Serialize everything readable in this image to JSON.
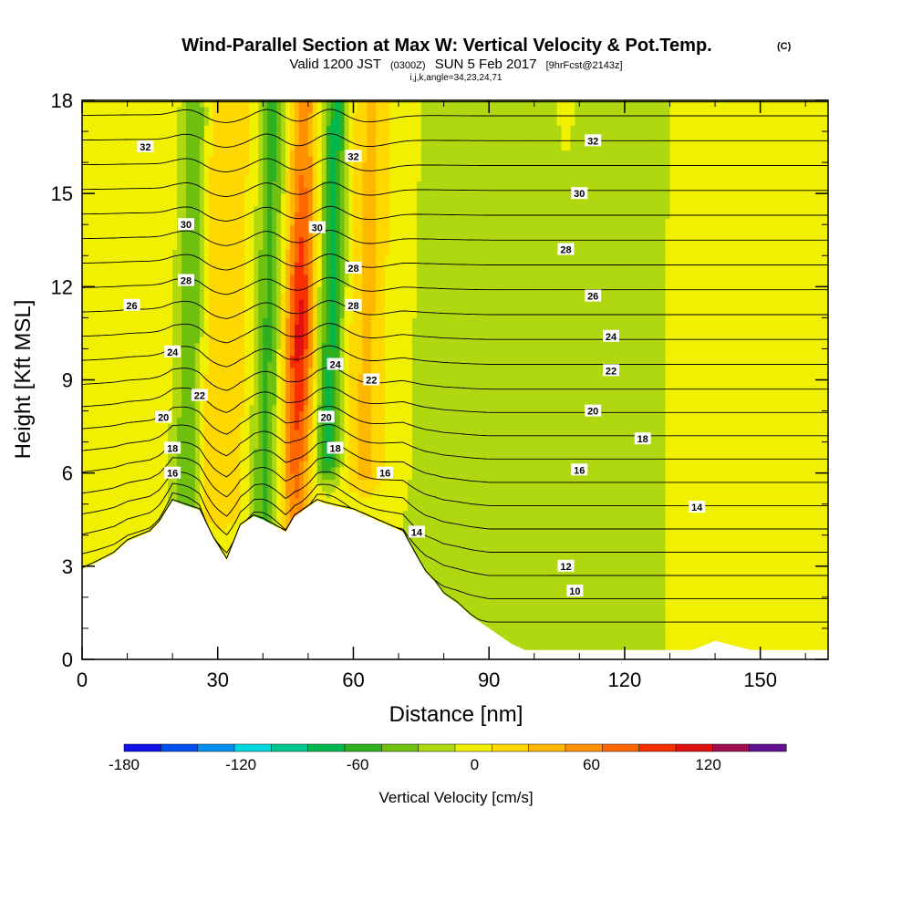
{
  "chart_data": {
    "type": "heatmap",
    "title": {
      "main": "Wind-Parallel Section at Max W: Vertical Velocity & Pot.Temp.",
      "copyright": "(C)",
      "subtitle_prefix": "Valid 1200 JST",
      "subtitle_utc": "(0300Z)",
      "subtitle_date": "SUN 5 Feb 2017",
      "subtitle_fcst": "[9hrFcst@2143z]",
      "indices": "i,j,k,angle=34,23,24,71"
    },
    "xlabel": "Distance [nm]",
    "ylabel": "Height [Kft MSL]",
    "xlim": [
      0,
      165
    ],
    "ylim": [
      0,
      18
    ],
    "xticks": [
      0,
      30,
      60,
      90,
      120,
      150
    ],
    "yticks": [
      0,
      3,
      6,
      9,
      12,
      15,
      18
    ],
    "colorbar": {
      "label": "Vertical Velocity [cm/s]",
      "ticks": [
        -180,
        -120,
        -60,
        0,
        60,
        120
      ],
      "range": [
        -180,
        160
      ],
      "step": 20,
      "colors": [
        "#1010e8",
        "#0050f0",
        "#0090f0",
        "#00d8e0",
        "#00c890",
        "#00b850",
        "#30b020",
        "#70c010",
        "#b0d810",
        "#f0f000",
        "#ffd800",
        "#ffb800",
        "#ff9000",
        "#ff6800",
        "#f83000",
        "#e01010",
        "#a01050",
        "#601090"
      ]
    },
    "velocity_background": 5,
    "velocity_features": [
      {
        "kind": "downdraft",
        "center_x": 24,
        "width_x": 3,
        "y_bottom": 5,
        "y_top": 17.6,
        "value": -50
      },
      {
        "kind": "updraft",
        "center_x": 31,
        "width_x": 6,
        "y_bottom": 5,
        "y_top": 18,
        "value": 35
      },
      {
        "kind": "downdraft",
        "center_x": 41,
        "width_x": 3,
        "y_bottom": 4.5,
        "y_top": 18,
        "value": -50
      },
      {
        "kind": "updraft",
        "center_x": 48,
        "width_x": 3.5,
        "y_bottom": 4.5,
        "y_top": 18,
        "value": 120
      },
      {
        "kind": "downdraft",
        "center_x": 55,
        "width_x": 3,
        "y_bottom": 6.5,
        "y_top": 18,
        "value": -70
      },
      {
        "kind": "updraft",
        "center_x": 63,
        "width_x": 5,
        "y_bottom": 6,
        "y_top": 18,
        "value": 40
      },
      {
        "kind": "weak_subsidence",
        "center_x": 88,
        "width_x": 20,
        "y_bottom": 0,
        "y_top": 18,
        "value": -10
      },
      {
        "kind": "weak_subsidence",
        "center_x": 120,
        "width_x": 12,
        "y_bottom": 0,
        "y_top": 18,
        "value": -10
      }
    ],
    "terrain": {
      "x": [
        0,
        3,
        7,
        10,
        15,
        17,
        20,
        26,
        29,
        32,
        35,
        38,
        40,
        45,
        47,
        52,
        54,
        60,
        71,
        74,
        76,
        78,
        80,
        83,
        86,
        89,
        92,
        95,
        98,
        100,
        104,
        135,
        140,
        148,
        165
      ],
      "height": [
        2.9,
        3.1,
        3.4,
        3.8,
        4.1,
        4.4,
        5.1,
        4.8,
        3.9,
        3.2,
        4.3,
        4.6,
        4.5,
        4.1,
        4.6,
        5.1,
        5.0,
        4.8,
        4.1,
        3.3,
        2.8,
        2.5,
        2.1,
        1.8,
        1.4,
        1.1,
        0.8,
        0.5,
        0.3,
        0.3,
        0.3,
        0.3,
        0.6,
        0.3,
        0.3
      ]
    },
    "theta_contours": {
      "levels": [
        10,
        12,
        14,
        16,
        18,
        20,
        22,
        24,
        26,
        28,
        30,
        32
      ],
      "labels": [
        {
          "text": "32",
          "x": 14,
          "y": 16.5
        },
        {
          "text": "30",
          "x": 23,
          "y": 14.0
        },
        {
          "text": "28",
          "x": 23,
          "y": 12.2
        },
        {
          "text": "26",
          "x": 11,
          "y": 11.4
        },
        {
          "text": "24",
          "x": 20,
          "y": 9.9
        },
        {
          "text": "22",
          "x": 26,
          "y": 8.5
        },
        {
          "text": "20",
          "x": 18,
          "y": 7.8
        },
        {
          "text": "18",
          "x": 20,
          "y": 6.8
        },
        {
          "text": "16",
          "x": 20,
          "y": 6.0
        },
        {
          "text": "32",
          "x": 60,
          "y": 16.2
        },
        {
          "text": "30",
          "x": 52,
          "y": 13.9
        },
        {
          "text": "28",
          "x": 60,
          "y": 12.6
        },
        {
          "text": "28",
          "x": 60,
          "y": 11.4
        },
        {
          "text": "24",
          "x": 56,
          "y": 9.5
        },
        {
          "text": "22",
          "x": 64,
          "y": 9.0
        },
        {
          "text": "20",
          "x": 54,
          "y": 7.8
        },
        {
          "text": "18",
          "x": 56,
          "y": 6.8
        },
        {
          "text": "16",
          "x": 67,
          "y": 6.0
        },
        {
          "text": "14",
          "x": 74,
          "y": 4.1
        },
        {
          "text": "32",
          "x": 113,
          "y": 16.7
        },
        {
          "text": "30",
          "x": 110,
          "y": 15.0
        },
        {
          "text": "28",
          "x": 107,
          "y": 13.2
        },
        {
          "text": "26",
          "x": 113,
          "y": 11.7
        },
        {
          "text": "24",
          "x": 117,
          "y": 10.4
        },
        {
          "text": "22",
          "x": 117,
          "y": 9.3
        },
        {
          "text": "20",
          "x": 113,
          "y": 8.0
        },
        {
          "text": "18",
          "x": 124,
          "y": 7.1
        },
        {
          "text": "16",
          "x": 110,
          "y": 6.1
        },
        {
          "text": "14",
          "x": 136,
          "y": 4.9
        },
        {
          "text": "12",
          "x": 107,
          "y": 3.0
        },
        {
          "text": "10",
          "x": 109,
          "y": 2.2
        }
      ]
    }
  }
}
